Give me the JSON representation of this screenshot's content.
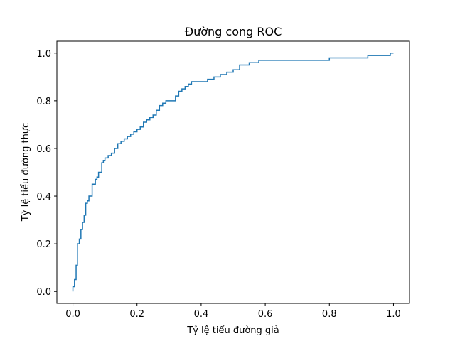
{
  "chart_data": {
    "type": "line",
    "title": "Đường cong ROC",
    "xlabel": "Tỷ lệ tiểu đường giả",
    "ylabel": "Tỷ lệ tiểu đường thực",
    "xlim": [
      -0.05,
      1.05
    ],
    "ylim": [
      -0.05,
      1.05
    ],
    "x_ticks": [
      0.0,
      0.2,
      0.4,
      0.6,
      0.8,
      1.0
    ],
    "y_ticks": [
      0.0,
      0.2,
      0.4,
      0.6,
      0.8,
      1.0
    ],
    "x_tick_labels": [
      "0.0",
      "0.2",
      "0.4",
      "0.6",
      "0.8",
      "1.0"
    ],
    "y_tick_labels": [
      "0.0",
      "0.2",
      "0.4",
      "0.6",
      "0.8",
      "1.0"
    ],
    "grid": false,
    "line_color": "#1f77b4",
    "series": [
      {
        "x": [
          0.0,
          0.0,
          0.005,
          0.005,
          0.01,
          0.01,
          0.014,
          0.014,
          0.02,
          0.02,
          0.025,
          0.025,
          0.03,
          0.03,
          0.035,
          0.035,
          0.04,
          0.04,
          0.045,
          0.045,
          0.05,
          0.05,
          0.06,
          0.06,
          0.07,
          0.07,
          0.075,
          0.075,
          0.08,
          0.08,
          0.085,
          0.085,
          0.09,
          0.09,
          0.095,
          0.095,
          0.1,
          0.1,
          0.11,
          0.11,
          0.12,
          0.12,
          0.13,
          0.13,
          0.14,
          0.14,
          0.15,
          0.15,
          0.16,
          0.16,
          0.17,
          0.17,
          0.18,
          0.18,
          0.19,
          0.19,
          0.2,
          0.2,
          0.21,
          0.21,
          0.22,
          0.22,
          0.23,
          0.23,
          0.24,
          0.24,
          0.25,
          0.25,
          0.26,
          0.26,
          0.27,
          0.27,
          0.28,
          0.28,
          0.29,
          0.29,
          0.3,
          0.3,
          0.32,
          0.32,
          0.33,
          0.33,
          0.34,
          0.34,
          0.35,
          0.35,
          0.36,
          0.36,
          0.37,
          0.37,
          0.38,
          0.38,
          0.42,
          0.42,
          0.44,
          0.44,
          0.46,
          0.46,
          0.48,
          0.48,
          0.5,
          0.5,
          0.52,
          0.52,
          0.55,
          0.55,
          0.58,
          0.58,
          0.6,
          0.6,
          0.8,
          0.8,
          0.92,
          0.92,
          0.99,
          0.99,
          1.0
        ],
        "y": [
          0.0,
          0.02,
          0.02,
          0.05,
          0.05,
          0.11,
          0.11,
          0.2,
          0.2,
          0.22,
          0.22,
          0.26,
          0.26,
          0.29,
          0.29,
          0.32,
          0.32,
          0.37,
          0.37,
          0.38,
          0.38,
          0.4,
          0.4,
          0.45,
          0.45,
          0.47,
          0.47,
          0.48,
          0.48,
          0.5,
          0.5,
          0.5,
          0.5,
          0.54,
          0.54,
          0.55,
          0.55,
          0.56,
          0.56,
          0.57,
          0.57,
          0.58,
          0.58,
          0.6,
          0.6,
          0.62,
          0.62,
          0.63,
          0.63,
          0.64,
          0.64,
          0.65,
          0.65,
          0.66,
          0.66,
          0.67,
          0.67,
          0.68,
          0.68,
          0.69,
          0.69,
          0.71,
          0.71,
          0.72,
          0.72,
          0.73,
          0.73,
          0.74,
          0.74,
          0.76,
          0.76,
          0.78,
          0.78,
          0.79,
          0.79,
          0.8,
          0.8,
          0.8,
          0.8,
          0.82,
          0.82,
          0.84,
          0.84,
          0.85,
          0.85,
          0.86,
          0.86,
          0.87,
          0.87,
          0.88,
          0.88,
          0.88,
          0.88,
          0.89,
          0.89,
          0.9,
          0.9,
          0.91,
          0.91,
          0.92,
          0.92,
          0.93,
          0.93,
          0.95,
          0.95,
          0.96,
          0.96,
          0.97,
          0.97,
          0.97,
          0.97,
          0.98,
          0.98,
          0.99,
          0.99,
          1.0,
          1.0
        ]
      }
    ]
  }
}
